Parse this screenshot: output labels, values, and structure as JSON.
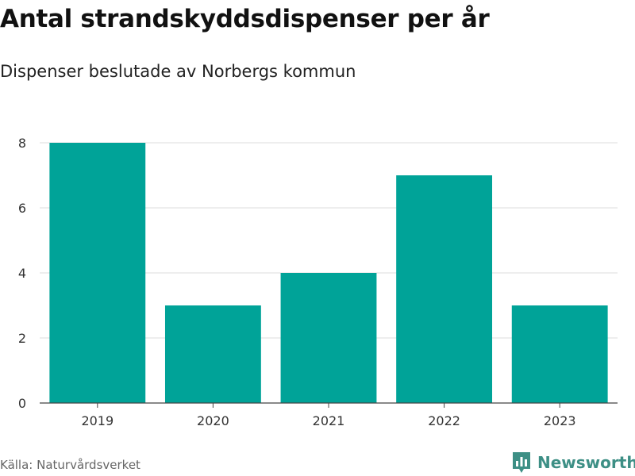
{
  "chart_data": {
    "type": "bar",
    "title": "Antal strandskyddsdispenser per år",
    "subtitle": "Dispenser beslutade av Norbergs kommun",
    "categories": [
      "2019",
      "2020",
      "2021",
      "2022",
      "2023"
    ],
    "values": [
      8,
      3,
      4,
      7,
      3
    ],
    "ylim": [
      0,
      8
    ],
    "yticks": [
      0,
      2,
      4,
      6,
      8
    ],
    "grid": true,
    "legend": "none",
    "bar_color": "#00a398"
  },
  "footer": {
    "source": "Källa: Naturvårdsverket",
    "brand": "Newsworthy",
    "brand_color": "#3d8f85",
    "brand_icon": "bar-chart-badge-icon"
  }
}
